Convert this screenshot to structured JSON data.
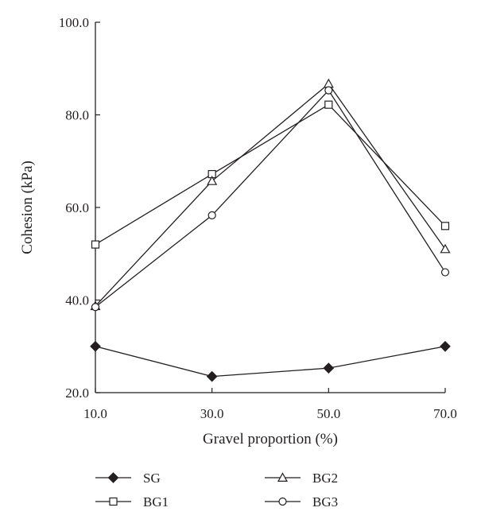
{
  "chart_data": {
    "type": "line",
    "title": "",
    "xlabel": "Gravel proportion (%)",
    "ylabel": "Cohesion (kPa)",
    "x": [
      10,
      30,
      50,
      70
    ],
    "x_tick_labels": [
      "10.0",
      "30.0",
      "50.0",
      "70.0"
    ],
    "xlim": [
      10,
      70
    ],
    "ylim": [
      20,
      100
    ],
    "y_ticks": [
      20,
      40,
      60,
      80,
      100
    ],
    "y_tick_labels": [
      "20.0",
      "40.0",
      "60.0",
      "80.0",
      "100.0"
    ],
    "grid": false,
    "legend_position": "bottom",
    "series": [
      {
        "name": "SG",
        "marker": "filled-diamond",
        "values": [
          30.0,
          23.5,
          25.3,
          30.0
        ]
      },
      {
        "name": "BG1",
        "marker": "open-square",
        "values": [
          52.0,
          67.2,
          82.2,
          56.0
        ]
      },
      {
        "name": "BG2",
        "marker": "open-triangle",
        "values": [
          38.7,
          65.7,
          86.7,
          51.0
        ]
      },
      {
        "name": "BG3",
        "marker": "open-circle",
        "values": [
          38.5,
          58.3,
          85.3,
          46.0
        ]
      }
    ],
    "colors": {
      "line": "#231f20",
      "marker_fill_open": "#ffffff",
      "marker_fill_solid": "#231f20"
    }
  }
}
